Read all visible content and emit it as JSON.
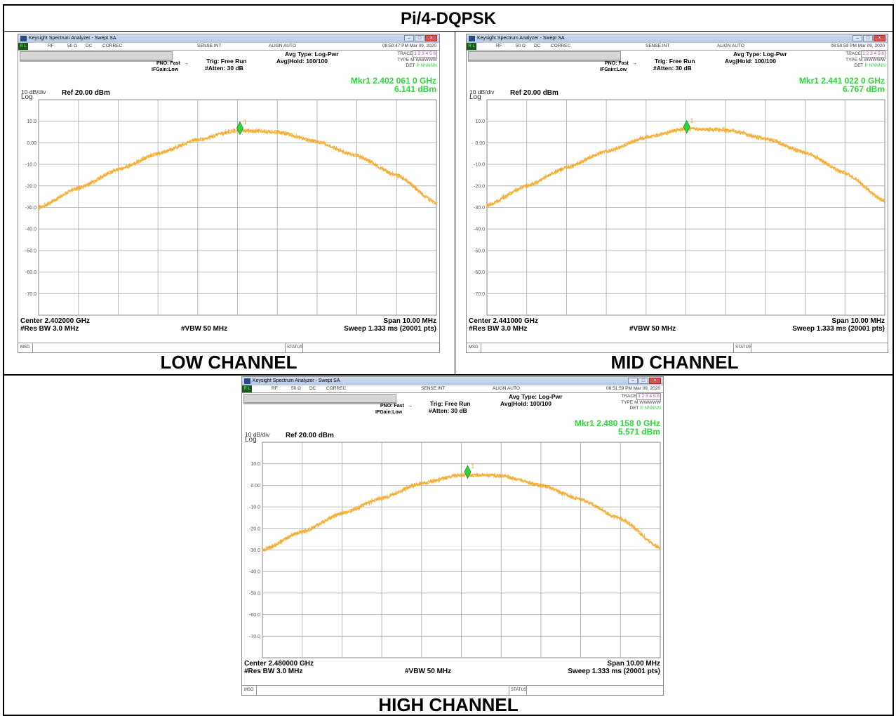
{
  "header_title": "Pi/4-DQPSK",
  "chart_data": [
    {
      "type": "line",
      "caption": "LOW CHANNEL",
      "window_title": "Keysight Spectrum Analyzer - Swept SA",
      "status": {
        "rl": "R L",
        "rf": "RF",
        "impedance": "50 Ω",
        "coupling": "DC",
        "correc": "CORREC",
        "sense": "SENSE:INT",
        "align": "ALIGN AUTO",
        "timestamp": "08:50:47 PM Mar 09, 2020"
      },
      "settings": {
        "pno": "PNO: Fast",
        "ifgain": "IFGain:Low",
        "trig": "Trig: Free Run",
        "atten": "#Atten: 30 dB",
        "avg_type": "Avg Type: Log-Pwr",
        "avg_hold": "Avg|Hold: 100/100"
      },
      "trace_info": {
        "trace": "TRACE",
        "trace_nums": "1 2 3 4 5 6",
        "type": "TYPE",
        "type_vals": "M WWWWW",
        "det": "DET",
        "det_vals": "P NNNNN"
      },
      "marker": {
        "label": "Mkr1 2.402 061 0 GHz",
        "level": "6.141 dBm",
        "x_offset_mhz": 0.061,
        "value_dbm": 6.141
      },
      "scale": {
        "per_div": "10 dB/div",
        "log": "Log",
        "ref": "Ref 20.00 dBm"
      },
      "y_ticks": [
        "10.0",
        "0.00",
        "-10.0",
        "-20.0",
        "-30.0",
        "-40.0",
        "-50.0",
        "-60.0",
        "-70.0"
      ],
      "ylim": [
        -80,
        20
      ],
      "xlim": [
        -5,
        5
      ],
      "x_unit": "MHz offset from center",
      "trace_color": "#f5a623",
      "marker_color": "#2fd63a",
      "x": [
        -5,
        -4,
        -3,
        -2,
        -1,
        0,
        1,
        2,
        3,
        4,
        5
      ],
      "y": [
        -30.0,
        -21.0,
        -12.5,
        -5.0,
        1.5,
        5.8,
        5.0,
        0.5,
        -6.0,
        -15.0,
        -28.0
      ],
      "footer": {
        "center": "Center 2.402000 GHz",
        "rbw": "#Res BW 3.0 MHz",
        "vbw": "#VBW 50 MHz",
        "span": "Span 10.00 MHz",
        "sweep": "Sweep  1.333 ms (20001 pts)"
      },
      "msg": "MSG",
      "status_label": "STATUS"
    },
    {
      "type": "line",
      "caption": "MID CHANNEL",
      "window_title": "Keysight Spectrum Analyzer - Swept SA",
      "status": {
        "rl": "R L",
        "rf": "RF",
        "impedance": "50 Ω",
        "coupling": "DC",
        "correc": "CORREC",
        "sense": "SENSE:INT",
        "align": "ALIGN AUTO",
        "timestamp": "08:50:59 PM Mar 09, 2020"
      },
      "settings": {
        "pno": "PNO: Fast",
        "ifgain": "IFGain:Low",
        "trig": "Trig: Free Run",
        "atten": "#Atten: 30 dB",
        "avg_type": "Avg Type: Log-Pwr",
        "avg_hold": "Avg|Hold: 100/100"
      },
      "trace_info": {
        "trace": "TRACE",
        "trace_nums": "1 2 3 4 5 6",
        "type": "TYPE",
        "type_vals": "M WWWWW",
        "det": "DET",
        "det_vals": "P NNNNN"
      },
      "marker": {
        "label": "Mkr1 2.441 022 0 GHz",
        "level": "6.767 dBm",
        "x_offset_mhz": 0.022,
        "value_dbm": 6.767
      },
      "scale": {
        "per_div": "10 dB/div",
        "log": "Log",
        "ref": "Ref 20.00 dBm"
      },
      "y_ticks": [
        "10.0",
        "0.00",
        "-10.0",
        "-20.0",
        "-30.0",
        "-40.0",
        "-50.0",
        "-60.0",
        "-70.0"
      ],
      "ylim": [
        -80,
        20
      ],
      "xlim": [
        -5,
        5
      ],
      "x_unit": "MHz offset from center",
      "trace_color": "#f5a623",
      "marker_color": "#2fd63a",
      "x": [
        -5,
        -4,
        -3,
        -2,
        -1,
        0,
        1,
        2,
        3,
        4,
        5
      ],
      "y": [
        -29.0,
        -20.0,
        -11.5,
        -4.0,
        2.5,
        6.5,
        6.0,
        2.0,
        -4.5,
        -14.0,
        -27.0
      ],
      "footer": {
        "center": "Center 2.441000 GHz",
        "rbw": "#Res BW 3.0 MHz",
        "vbw": "#VBW 50 MHz",
        "span": "Span 10.00 MHz",
        "sweep": "Sweep  1.333 ms (20001 pts)"
      },
      "msg": "MSG",
      "status_label": "STATUS"
    },
    {
      "type": "line",
      "caption": "HIGH CHANNEL",
      "window_title": "Keysight Spectrum Analyzer - Swept SA",
      "status": {
        "rl": "R L",
        "rf": "RF",
        "impedance": "50 Ω",
        "coupling": "DC",
        "correc": "CORREC",
        "sense": "SENSE:INT",
        "align": "ALIGN AUTO",
        "timestamp": "08:51:59 PM Mar 09, 2020"
      },
      "settings": {
        "pno": "PNO: Fast",
        "ifgain": "IFGain:Low",
        "trig": "Trig: Free Run",
        "atten": "#Atten: 30 dB",
        "avg_type": "Avg Type: Log-Pwr",
        "avg_hold": "Avg|Hold: 100/100"
      },
      "trace_info": {
        "trace": "TRACE",
        "trace_nums": "1 2 3 4 5 6",
        "type": "TYPE",
        "type_vals": "M WWWWW",
        "det": "DET",
        "det_vals": "P NNNNN"
      },
      "marker": {
        "label": "Mkr1 2.480 158 0 GHz",
        "level": "5.571 dBm",
        "x_offset_mhz": 0.158,
        "value_dbm": 5.571
      },
      "scale": {
        "per_div": "10 dB/div",
        "log": "Log",
        "ref": "Ref 20.00 dBm"
      },
      "y_ticks": [
        "10.0",
        "0.00",
        "-10.0",
        "-20.0",
        "-30.0",
        "-40.0",
        "-50.0",
        "-60.0",
        "-70.0"
      ],
      "ylim": [
        -80,
        20
      ],
      "xlim": [
        -5,
        5
      ],
      "x_unit": "MHz offset from center",
      "trace_color": "#f5a623",
      "marker_color": "#2fd63a",
      "x": [
        -5,
        -4,
        -3,
        -2,
        -1,
        0,
        1,
        2,
        3,
        4,
        5
      ],
      "y": [
        -30.0,
        -21.5,
        -13.0,
        -6.0,
        1.0,
        4.8,
        4.5,
        0.0,
        -6.5,
        -15.5,
        -29.0
      ],
      "footer": {
        "center": "Center 2.480000 GHz",
        "rbw": "#Res BW 3.0 MHz",
        "vbw": "#VBW 50 MHz",
        "span": "Span 10.00 MHz",
        "sweep": "Sweep  1.333 ms (20001 pts)"
      },
      "msg": "MSG",
      "status_label": "STATUS"
    }
  ]
}
